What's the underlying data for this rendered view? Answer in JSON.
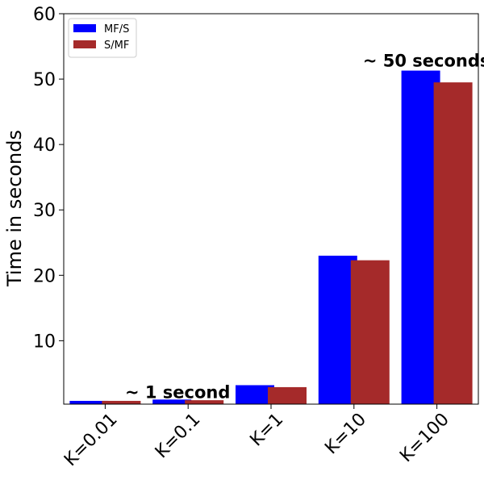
{
  "chart_data": {
    "type": "bar",
    "title": "",
    "xlabel": "",
    "ylabel": "Time in seconds",
    "categories": [
      "K=0.01",
      "K=0.1",
      "K=1",
      "K=10",
      "K=100"
    ],
    "series": [
      {
        "name": "MF/S",
        "color": "#0000ff",
        "values": [
          0.8,
          1.0,
          3.2,
          23.0,
          51.3
        ]
      },
      {
        "name": "S/MF",
        "color": "#a52a2a",
        "values": [
          0.8,
          0.9,
          2.9,
          22.3,
          49.5
        ]
      }
    ],
    "ylim": [
      0.3,
      60
    ],
    "yticks": [
      10,
      20,
      30,
      40,
      50,
      60
    ],
    "legend": "top-left",
    "annotations": [
      {
        "text": "~ 1 second",
        "category": "K=0.1",
        "y": 1.2
      },
      {
        "text": "~ 50 seconds",
        "category": "K=100",
        "y": 51.9
      }
    ]
  }
}
